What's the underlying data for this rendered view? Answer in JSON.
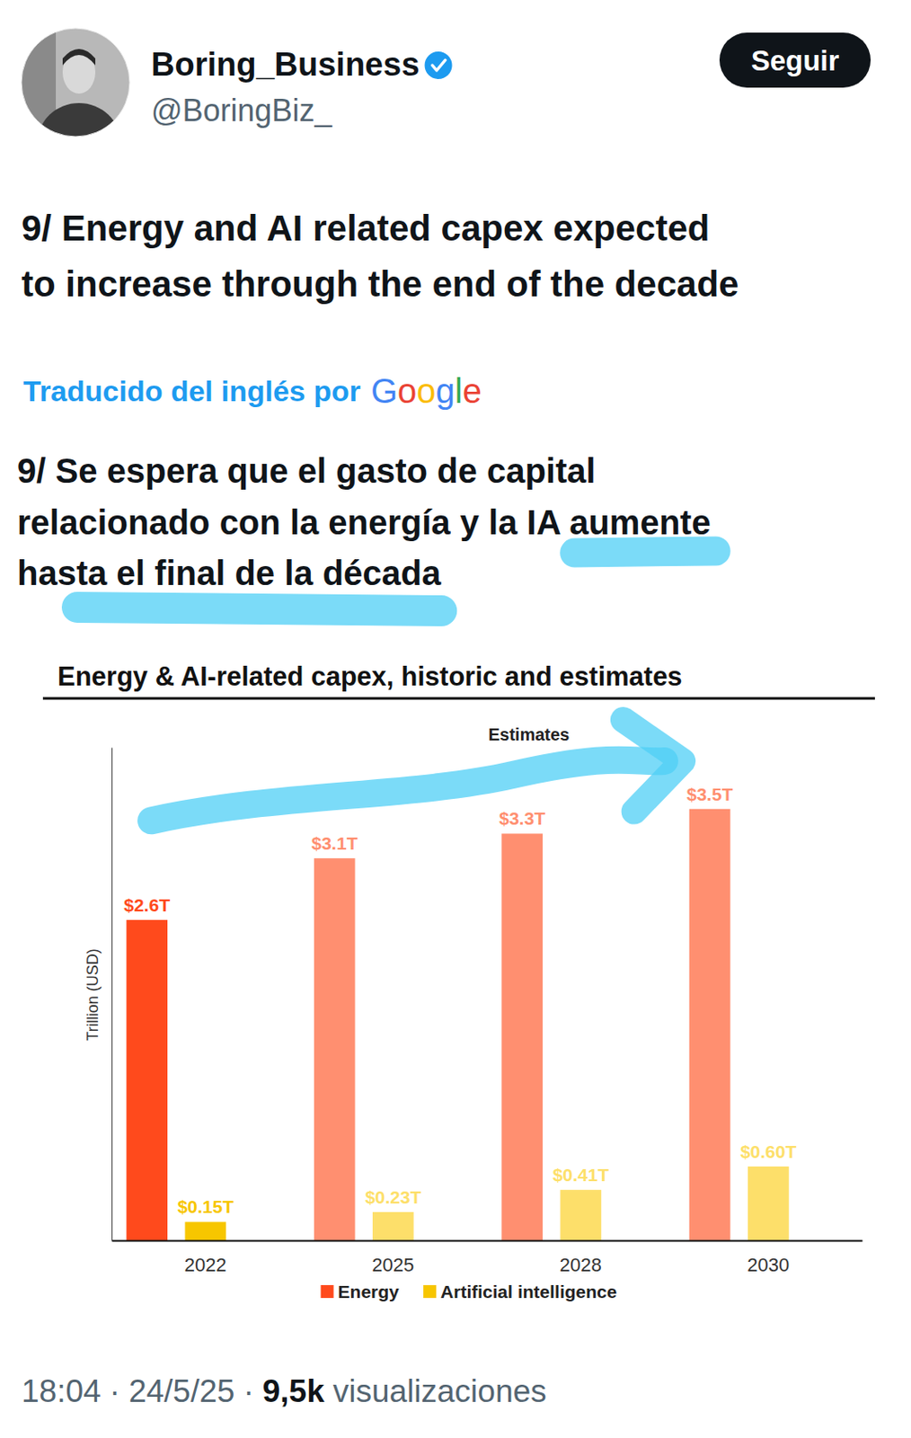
{
  "tweet": {
    "author_name": "Boring_Business",
    "handle": "@BoringBiz_",
    "follow_button": "Seguir",
    "text_lines": [
      "9/ Energy and AI related capex expected",
      "to increase through the end of the decade"
    ],
    "translation_note": "Traducido del inglés por",
    "translator": "Google",
    "translated_lines": [
      "9/ Se espera que el gasto de capital",
      "relacionado con la energía y la IA aumente",
      "hasta el final de la década"
    ],
    "footer": {
      "time": "18:04",
      "separator": "·",
      "date": "24/5/25",
      "views": "9,5k",
      "views_label": "visualizaciones"
    }
  },
  "chart_data": {
    "type": "bar",
    "title": "Energy & AI-related capex, historic and estimates",
    "annotation": "Estimates",
    "y_label": "Trillion (USD)",
    "categories": [
      "2022",
      "2025",
      "2028",
      "2030"
    ],
    "series": [
      {
        "name": "Energy",
        "colors": [
          "#ff4a1c",
          "#ff8f70",
          "#ff8f70",
          "#ff8f70"
        ],
        "values": [
          2.6,
          3.1,
          3.3,
          3.5
        ],
        "value_labels": [
          "$2.6T",
          "$3.1T",
          "$3.3T",
          "$3.5T"
        ]
      },
      {
        "name": "Artificial intelligence",
        "colors": [
          "#f7c600",
          "#fddf6a",
          "#fddf6a",
          "#fddf6a"
        ],
        "values": [
          0.15,
          0.23,
          0.41,
          0.6
        ],
        "value_labels": [
          "$0.15T",
          "$0.23T",
          "$0.41T",
          "$0.60T"
        ]
      }
    ],
    "ylim": [
      0,
      4
    ],
    "yticks": [],
    "tick_labels": "x",
    "data_labels": true,
    "legend": "bottom",
    "grid": false
  }
}
